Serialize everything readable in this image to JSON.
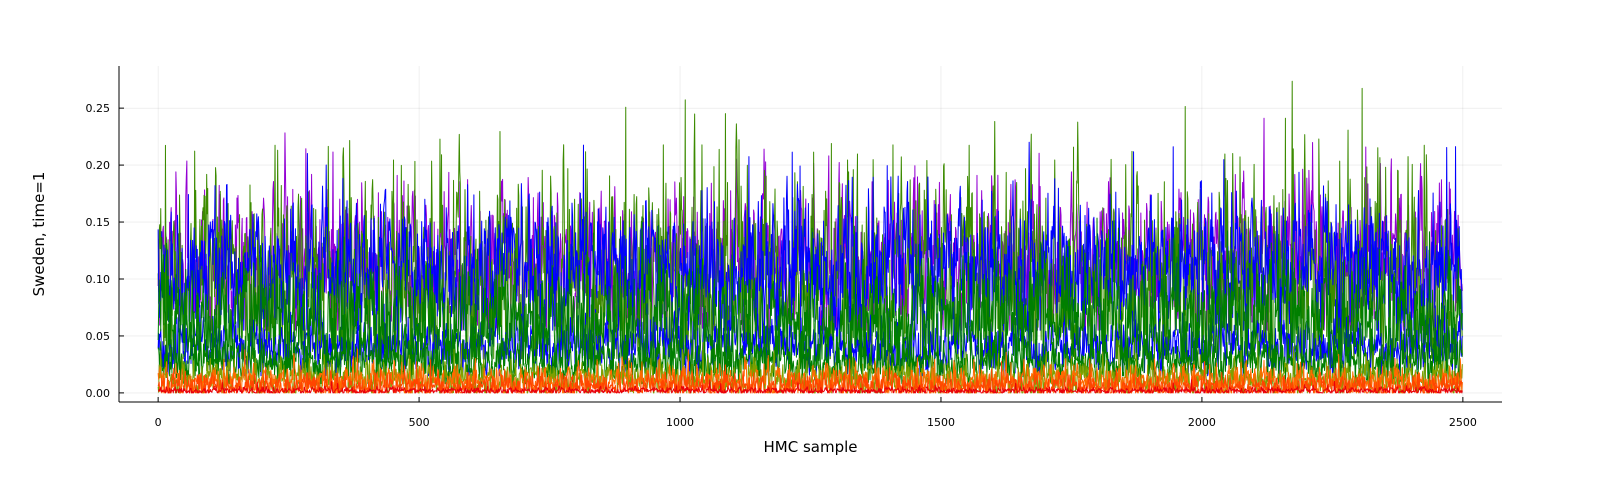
{
  "chart_data": {
    "type": "line",
    "title": "",
    "xlabel": "HMC sample",
    "ylabel": "Sweden, time=1",
    "xlim": [
      -75,
      2575
    ],
    "ylim": [
      -0.008,
      0.287
    ],
    "x_ticks": [
      0,
      500,
      1000,
      1500,
      2000,
      2500
    ],
    "x_tick_labels": [
      "0",
      "500",
      "1000",
      "1500",
      "2000",
      "2500"
    ],
    "y_ticks": [
      0.0,
      0.05,
      0.1,
      0.15,
      0.2,
      0.25
    ],
    "y_tick_labels": [
      "0.00",
      "0.05",
      "0.10",
      "0.15",
      "0.20",
      "0.25"
    ],
    "grid": true,
    "legend": "none",
    "n_samples": 2500,
    "series": [
      {
        "color": "#9400D3",
        "mean": 0.115,
        "spread": 0.032,
        "min": 0.055,
        "max": 0.248
      },
      {
        "color": "#3C8B00",
        "mean": 0.1,
        "spread": 0.045,
        "min": 0.03,
        "max": 0.279
      },
      {
        "color": "#0000FF",
        "mean": 0.11,
        "spread": 0.028,
        "min": 0.055,
        "max": 0.22
      },
      {
        "color": "#0000FF",
        "mean": 0.042,
        "spread": 0.012,
        "min": 0.015,
        "max": 0.085
      },
      {
        "color": "#007F00",
        "mean": 0.065,
        "spread": 0.025,
        "min": 0.015,
        "max": 0.16
      },
      {
        "color": "#007F00",
        "mean": 0.028,
        "spread": 0.01,
        "min": 0.008,
        "max": 0.07
      },
      {
        "color": "#7FA000",
        "mean": 0.012,
        "spread": 0.008,
        "min": 0.0,
        "max": 0.045
      },
      {
        "color": "#FF6A00",
        "mean": 0.01,
        "spread": 0.007,
        "min": 0.0,
        "max": 0.04
      },
      {
        "color": "#FF4500",
        "mean": 0.006,
        "spread": 0.005,
        "min": 0.0,
        "max": 0.03
      },
      {
        "color": "#E8000B",
        "mean": 0.002,
        "spread": 0.0015,
        "min": 0.0,
        "max": 0.012
      }
    ]
  }
}
